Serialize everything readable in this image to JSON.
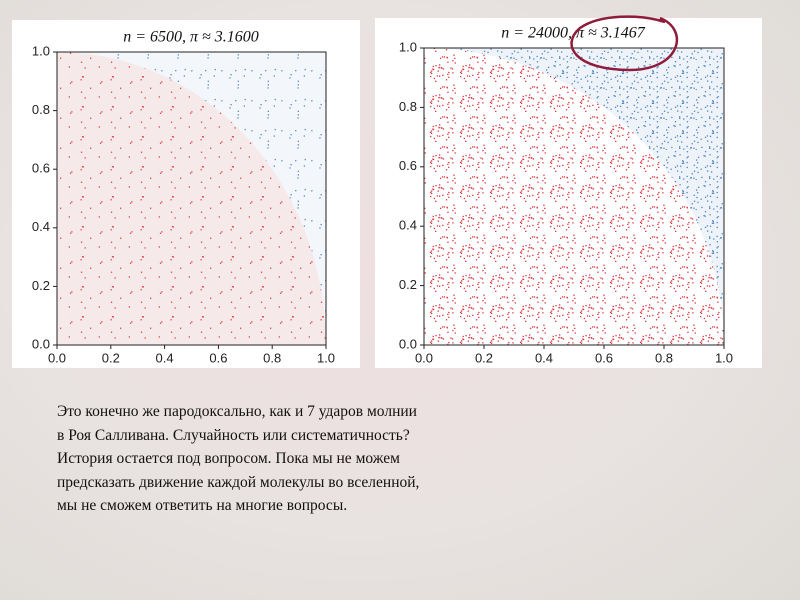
{
  "chart_data": [
    {
      "type": "scatter",
      "title": "n = 6500, π ≈ 3.1600",
      "xlim": [
        0,
        1
      ],
      "ylim": [
        0,
        1
      ],
      "xticks": [
        {
          "value": 0,
          "label": "0.0"
        },
        {
          "value": 0.2,
          "label": "0.2"
        },
        {
          "value": 0.4,
          "label": "0.4"
        },
        {
          "value": 0.6,
          "label": "0.6"
        },
        {
          "value": 0.8,
          "label": "0.8"
        },
        {
          "value": 1,
          "label": "1.0"
        }
      ],
      "yticks": [
        {
          "value": 0,
          "label": "0.0"
        },
        {
          "value": 0.2,
          "label": "0.2"
        },
        {
          "value": 0.4,
          "label": "0.4"
        },
        {
          "value": 0.6,
          "label": "0.6"
        },
        {
          "value": 0.8,
          "label": "0.8"
        },
        {
          "value": 1,
          "label": "1.0"
        }
      ],
      "inside_color": "#e0454b",
      "outside_color": "#5a8cc6"
    },
    {
      "type": "scatter",
      "title": "n = 24000, π ≈ 3.1467",
      "xlim": [
        0,
        1
      ],
      "ylim": [
        0,
        1
      ],
      "xticks": [
        {
          "value": 0,
          "label": "0.0"
        },
        {
          "value": 0.2,
          "label": "0.2"
        },
        {
          "value": 0.4,
          "label": "0.4"
        },
        {
          "value": 0.6,
          "label": "0.6"
        },
        {
          "value": 0.8,
          "label": "0.8"
        },
        {
          "value": 1,
          "label": "1.0"
        }
      ],
      "yticks": [
        {
          "value": 0,
          "label": "0.0"
        },
        {
          "value": 0.2,
          "label": "0.2"
        },
        {
          "value": 0.4,
          "label": "0.4"
        },
        {
          "value": 0.6,
          "label": "0.6"
        },
        {
          "value": 0.8,
          "label": "0.8"
        },
        {
          "value": 1,
          "label": "1.0"
        }
      ],
      "inside_color": "#d9363c",
      "outside_color": "#4f86c2"
    }
  ],
  "text": {
    "lines": [
      "Это конечно же пародоксально, как и 7 ударов молнии",
      "в Роя Салливана. Случайность или систематичность?",
      "История остается под вопросом. Пока мы не можем",
      "предсказать движение каждой молекулы во вселенной,",
      "мы не сможем ответить на многие вопросы."
    ]
  }
}
